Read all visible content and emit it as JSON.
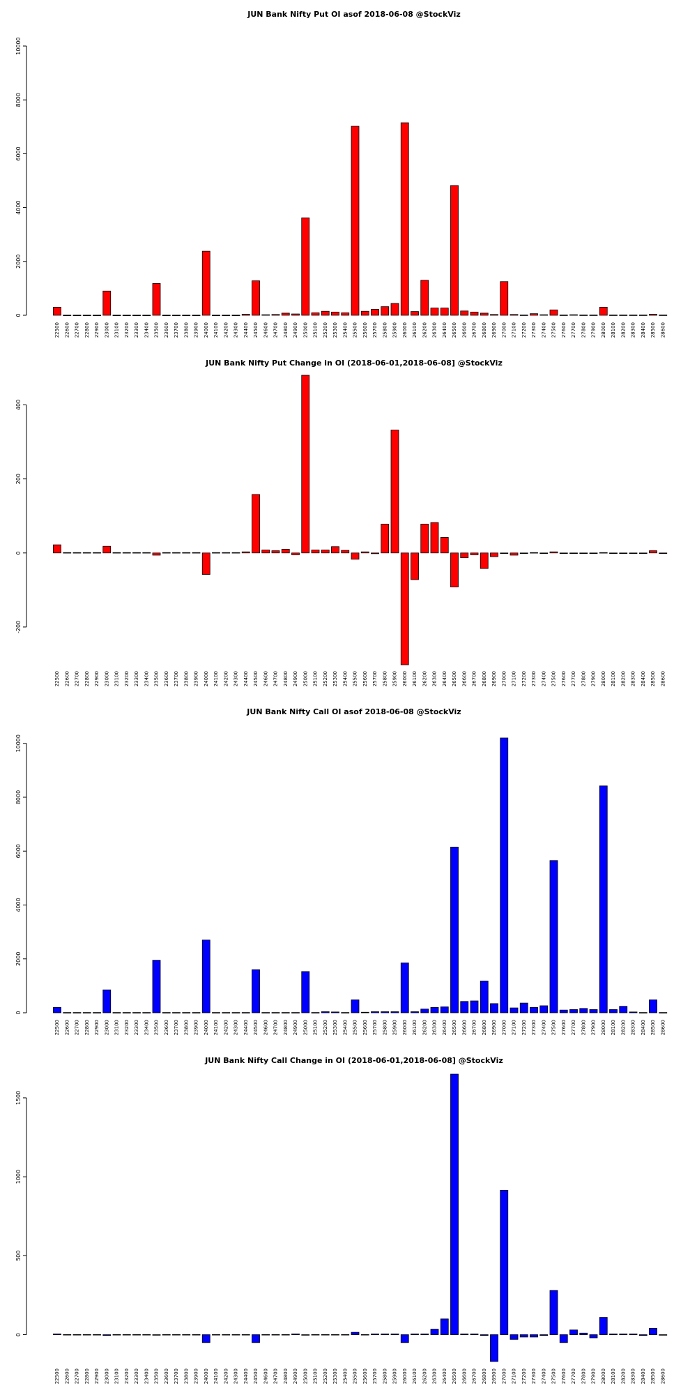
{
  "colors": {
    "put": "#ff0000",
    "call": "#0000ff",
    "stroke": "#000000"
  },
  "strikes": [
    "22500",
    "22600",
    "22700",
    "22800",
    "22900",
    "23000",
    "23100",
    "23200",
    "23300",
    "23400",
    "23500",
    "23600",
    "23700",
    "23800",
    "23900",
    "24000",
    "24100",
    "24200",
    "24300",
    "24400",
    "24500",
    "24600",
    "24700",
    "24800",
    "24900",
    "25000",
    "25100",
    "25200",
    "25300",
    "25400",
    "25500",
    "25600",
    "25700",
    "25800",
    "25900",
    "26000",
    "26100",
    "26200",
    "26300",
    "26400",
    "26500",
    "26600",
    "26700",
    "26800",
    "26900",
    "27000",
    "27100",
    "27200",
    "27300",
    "27400",
    "27500",
    "27600",
    "27700",
    "27800",
    "27900",
    "28000",
    "28100",
    "28200",
    "28300",
    "28400",
    "28500",
    "28600"
  ],
  "chart_data": [
    {
      "type": "bar",
      "title": "JUN Bank Nifty Put OI asof 2018-06-08 @StockViz",
      "color": "#ff0000",
      "ylim": [
        0,
        10000
      ],
      "yticks": [
        0,
        2000,
        4000,
        6000,
        8000,
        10000
      ],
      "values": [
        300,
        5,
        5,
        5,
        5,
        900,
        5,
        5,
        5,
        5,
        1180,
        5,
        5,
        5,
        5,
        2380,
        5,
        5,
        5,
        40,
        1280,
        20,
        30,
        80,
        50,
        3620,
        90,
        150,
        120,
        90,
        7020,
        150,
        220,
        320,
        440,
        7150,
        140,
        1300,
        270,
        270,
        4820,
        160,
        120,
        80,
        30,
        1250,
        30,
        10,
        60,
        20,
        200,
        10,
        20,
        10,
        10,
        300,
        10,
        10,
        10,
        10,
        40,
        10
      ]
    },
    {
      "type": "bar",
      "title": "JUN Bank Nifty Put Change in OI (2018-06-01,2018-06-08] @StockViz",
      "color": "#ff0000",
      "ylim": [
        -300,
        480
      ],
      "yticks": [
        -200,
        0,
        200,
        400
      ],
      "values": [
        22,
        1,
        1,
        1,
        1,
        18,
        1,
        1,
        1,
        1,
        -6,
        1,
        1,
        1,
        1,
        -58,
        1,
        1,
        1,
        3,
        158,
        8,
        6,
        10,
        -5,
        480,
        8,
        8,
        17,
        7,
        -17,
        3,
        -2,
        78,
        332,
        -302,
        -72,
        78,
        82,
        42,
        -92,
        -13,
        -5,
        -42,
        -10,
        -1,
        -6,
        -1,
        1,
        -1,
        3,
        -1,
        -1,
        -1,
        -1,
        1,
        -1,
        -1,
        -1,
        -1,
        6,
        -1
      ]
    },
    {
      "type": "bar",
      "title": "JUN Bank Nifty Call OI asof 2018-06-08 @StockViz",
      "color": "#0000ff",
      "ylim": [
        0,
        10200
      ],
      "yticks": [
        0,
        2000,
        4000,
        6000,
        8000,
        10000
      ],
      "values": [
        200,
        10,
        10,
        10,
        10,
        850,
        10,
        10,
        10,
        10,
        1950,
        10,
        10,
        10,
        10,
        2700,
        10,
        10,
        10,
        10,
        1600,
        10,
        10,
        10,
        10,
        1530,
        10,
        40,
        30,
        10,
        480,
        20,
        40,
        40,
        40,
        1850,
        40,
        140,
        200,
        220,
        6150,
        420,
        440,
        1180,
        340,
        10200,
        180,
        360,
        200,
        260,
        5650,
        100,
        120,
        160,
        120,
        8420,
        120,
        240,
        30,
        10,
        480,
        10
      ]
    },
    {
      "type": "bar",
      "title": "JUN Bank Nifty Call Change in OI (2018-06-01,2018-06-08] @StockViz",
      "color": "#0000ff",
      "ylim": [
        -170,
        1650
      ],
      "yticks": [
        0,
        500,
        1000,
        1500
      ],
      "values": [
        5,
        1,
        1,
        1,
        1,
        -5,
        1,
        1,
        1,
        1,
        -2,
        1,
        1,
        1,
        1,
        -50,
        1,
        1,
        1,
        1,
        -50,
        1,
        1,
        1,
        5,
        -1,
        1,
        1,
        1,
        1,
        15,
        1,
        5,
        5,
        5,
        -50,
        5,
        5,
        35,
        100,
        1650,
        5,
        5,
        -5,
        -170,
        915,
        -30,
        -15,
        -15,
        -5,
        280,
        -50,
        30,
        10,
        -20,
        110,
        5,
        5,
        5,
        -5,
        40,
        -1
      ]
    }
  ]
}
